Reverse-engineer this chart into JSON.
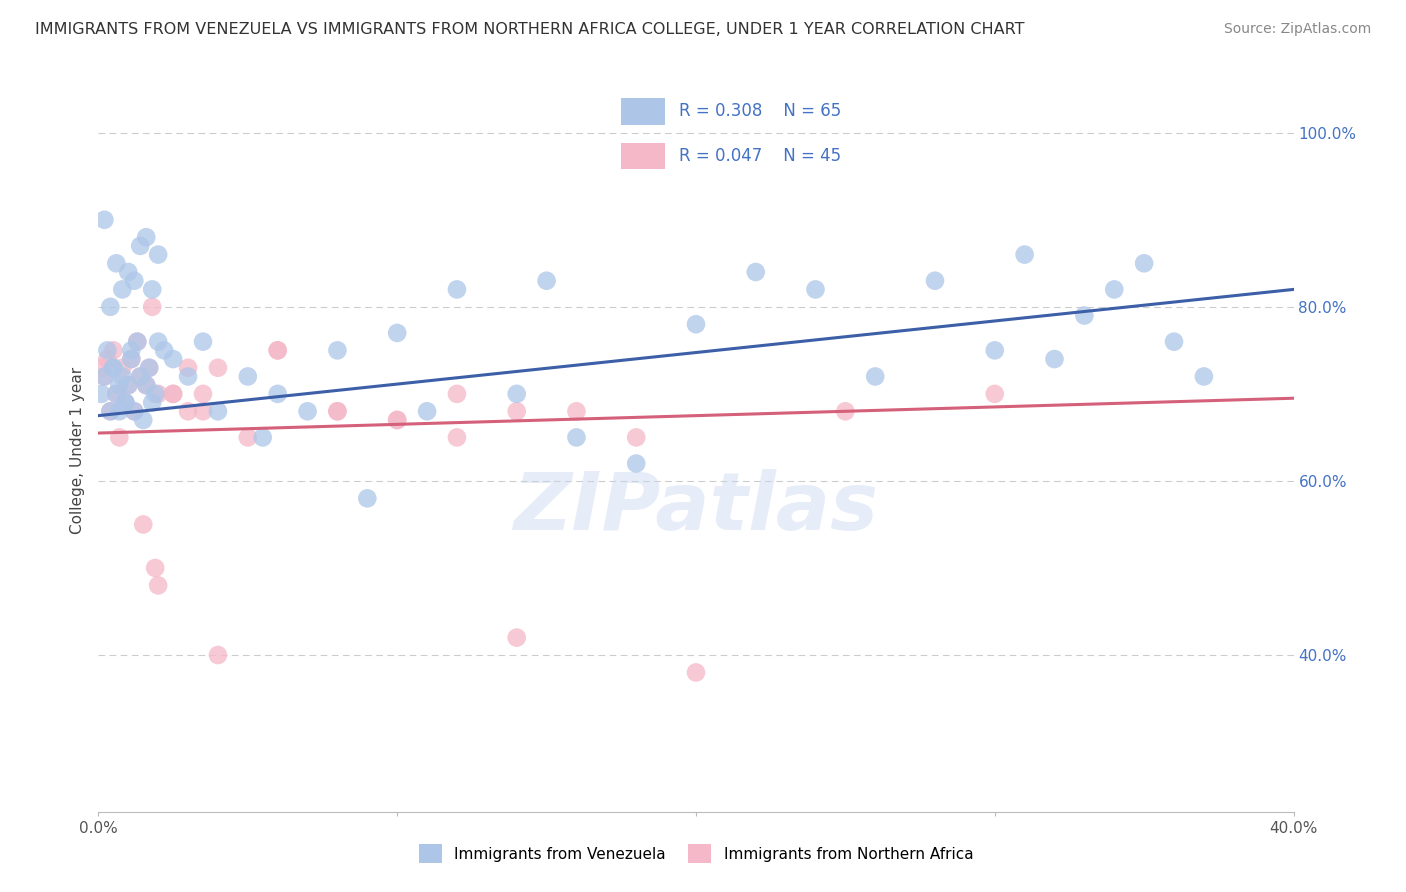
{
  "title": "IMMIGRANTS FROM VENEZUELA VS IMMIGRANTS FROM NORTHERN AFRICA COLLEGE, UNDER 1 YEAR CORRELATION CHART",
  "source": "Source: ZipAtlas.com",
  "ylabel": "College, Under 1 year",
  "xlim": [
    0.0,
    0.4
  ],
  "ylim": [
    0.22,
    1.05
  ],
  "yticks": [
    0.4,
    0.6,
    0.8,
    1.0
  ],
  "ytick_labels": [
    "40.0%",
    "60.0%",
    "80.0%",
    "100.0%"
  ],
  "grid_color": "#cccccc",
  "background_color": "#ffffff",
  "watermark": "ZIPatlas",
  "series1_name": "Immigrants from Venezuela",
  "series1_color": "#adc6e8",
  "series1_line_color": "#3c5fa8",
  "series1_R": 0.308,
  "series1_N": 65,
  "series2_name": "Immigrants from Northern Africa",
  "series2_color": "#f4b8c8",
  "series2_line_color": "#d4607a",
  "series2_R": 0.047,
  "series2_N": 45,
  "legend_text_color": "#4472c4",
  "legend_R1": "R = 0.308",
  "legend_N1": "N = 65",
  "legend_R2": "R = 0.047",
  "legend_N2": "N = 45",
  "series1_x": [
    0.001,
    0.002,
    0.003,
    0.004,
    0.005,
    0.006,
    0.007,
    0.008,
    0.009,
    0.01,
    0.011,
    0.012,
    0.013,
    0.014,
    0.015,
    0.016,
    0.017,
    0.018,
    0.019,
    0.02,
    0.022,
    0.025,
    0.03,
    0.035,
    0.04,
    0.05,
    0.055,
    0.06,
    0.07,
    0.08,
    0.09,
    0.1,
    0.11,
    0.12,
    0.14,
    0.15,
    0.16,
    0.18,
    0.2,
    0.22,
    0.24,
    0.26,
    0.28,
    0.3,
    0.31,
    0.32,
    0.33,
    0.34,
    0.35,
    0.36,
    0.37,
    0.002,
    0.004,
    0.006,
    0.008,
    0.01,
    0.012,
    0.014,
    0.016,
    0.018,
    0.02,
    0.005,
    0.007,
    0.009,
    0.011
  ],
  "series1_y": [
    0.7,
    0.72,
    0.75,
    0.68,
    0.73,
    0.7,
    0.68,
    0.72,
    0.69,
    0.71,
    0.74,
    0.68,
    0.76,
    0.72,
    0.67,
    0.71,
    0.73,
    0.69,
    0.7,
    0.76,
    0.75,
    0.74,
    0.72,
    0.76,
    0.68,
    0.72,
    0.65,
    0.7,
    0.68,
    0.75,
    0.58,
    0.77,
    0.68,
    0.82,
    0.7,
    0.83,
    0.65,
    0.62,
    0.78,
    0.84,
    0.82,
    0.72,
    0.83,
    0.75,
    0.86,
    0.74,
    0.79,
    0.82,
    0.85,
    0.76,
    0.72,
    0.9,
    0.8,
    0.85,
    0.82,
    0.84,
    0.83,
    0.87,
    0.88,
    0.82,
    0.86,
    0.73,
    0.71,
    0.69,
    0.75
  ],
  "series2_x": [
    0.001,
    0.002,
    0.003,
    0.004,
    0.005,
    0.006,
    0.007,
    0.008,
    0.009,
    0.01,
    0.011,
    0.012,
    0.013,
    0.014,
    0.015,
    0.016,
    0.017,
    0.018,
    0.019,
    0.02,
    0.025,
    0.03,
    0.035,
    0.04,
    0.06,
    0.08,
    0.1,
    0.12,
    0.14,
    0.16,
    0.18,
    0.02,
    0.025,
    0.03,
    0.035,
    0.04,
    0.05,
    0.06,
    0.08,
    0.1,
    0.12,
    0.14,
    0.2,
    0.25,
    0.3
  ],
  "series2_y": [
    0.73,
    0.72,
    0.74,
    0.68,
    0.75,
    0.7,
    0.65,
    0.73,
    0.69,
    0.71,
    0.74,
    0.68,
    0.76,
    0.72,
    0.55,
    0.71,
    0.73,
    0.8,
    0.5,
    0.7,
    0.7,
    0.68,
    0.68,
    0.73,
    0.75,
    0.68,
    0.67,
    0.7,
    0.68,
    0.68,
    0.65,
    0.48,
    0.7,
    0.73,
    0.7,
    0.4,
    0.65,
    0.75,
    0.68,
    0.67,
    0.65,
    0.42,
    0.38,
    0.68,
    0.7
  ]
}
